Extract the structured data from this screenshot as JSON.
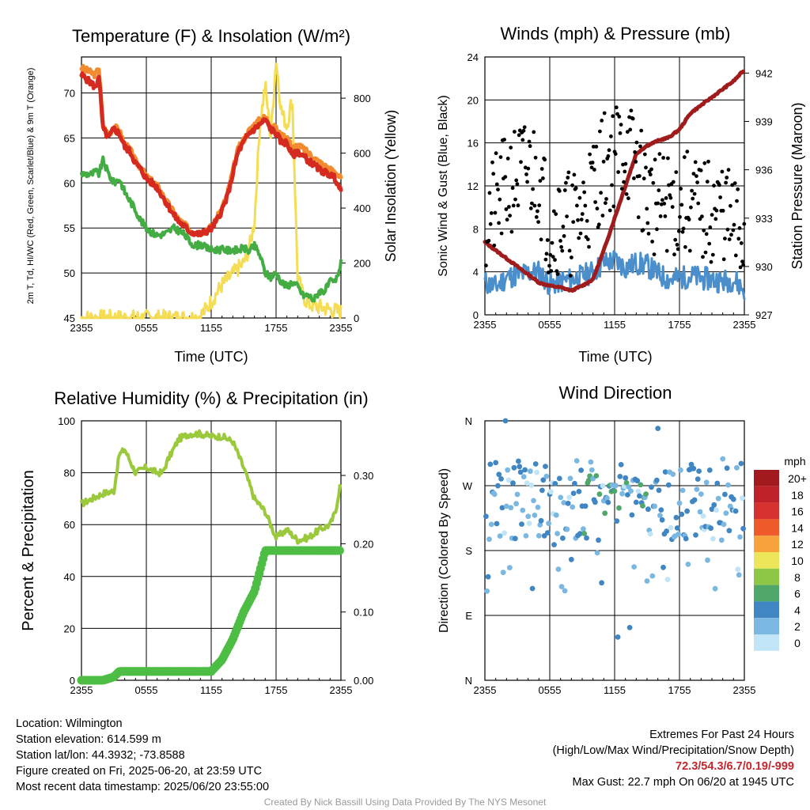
{
  "colors": {
    "temp": "#d42a1f",
    "hiwc": "#e8452a",
    "t9m": "#f28a30",
    "dew": "#43ad44",
    "solar": "#f5dc55",
    "wind": "#4a8fcc",
    "gust": "#000000",
    "pressure": "#a01c1c",
    "rh": "#9ac93c",
    "precip": "#4dbd44",
    "extremes": "#c1272d",
    "credit": "#999999"
  },
  "time_ticks": [
    "2355",
    "0555",
    "1155",
    "1755",
    "2355"
  ],
  "chart_data": [
    {
      "type": "line",
      "title": "Temperature (F) & Insolation (W/m²)",
      "xlabel": "Time (UTC)",
      "ylabel": "2m T, Td, HI/WC (Red, Green, Scarlet/Blue) & 9m T (Orange)",
      "y2label": "Solar Insolation (Yellow)",
      "x_hours": [
        0,
        1,
        1.3,
        1.6,
        2,
        2.5,
        3,
        3.5,
        4,
        4.5,
        5,
        5.5,
        6,
        6.5,
        7,
        7.5,
        8,
        8.5,
        9,
        9.5,
        10,
        10.5,
        11,
        11.5,
        12,
        12.5,
        13,
        13.5,
        14,
        14.5,
        15,
        15.5,
        16,
        16.5,
        17,
        17.5,
        18,
        18.5,
        19,
        19.5,
        20,
        20.5,
        21,
        21.5,
        22,
        22.5,
        23,
        23.5,
        24
      ],
      "ylim": [
        45,
        74
      ],
      "y2lim": [
        0,
        950
      ],
      "yticks": [
        45,
        50,
        55,
        60,
        65,
        70
      ],
      "y2ticks": [
        0,
        200,
        400,
        600,
        800
      ],
      "series": [
        {
          "name": "2m T",
          "values": [
            72,
            71,
            70.5,
            72,
            66,
            65,
            66,
            65.5,
            64,
            63.5,
            62.2,
            61.5,
            60.5,
            60,
            59.5,
            58.5,
            57.5,
            56.5,
            55.7,
            55.2,
            54.6,
            54.4,
            54.3,
            54.6,
            54.9,
            55.8,
            57,
            58.5,
            61,
            63.5,
            64.5,
            65.5,
            66,
            66.5,
            67,
            66,
            65.5,
            64.5,
            64.5,
            63,
            63.5,
            63,
            62.5,
            62,
            61.5,
            61.2,
            60.9,
            60.5,
            59
          ]
        },
        {
          "name": "9m T",
          "values": [
            72.8,
            72.2,
            72,
            72.8,
            66.3,
            65.3,
            66.3,
            65.8,
            64.3,
            63.7,
            62.4,
            61.7,
            60.7,
            60.2,
            59.7,
            58.7,
            57.7,
            56.8,
            55.9,
            55.4,
            54.8,
            54.6,
            54.5,
            54.8,
            55.1,
            56,
            57.2,
            58.8,
            61.3,
            63.8,
            64.8,
            65.8,
            66.5,
            67,
            67.3,
            66.5,
            66,
            65.2,
            65.2,
            63.8,
            64.2,
            63.8,
            63.3,
            62.8,
            62.3,
            61.9,
            61.5,
            61.2,
            60.5
          ]
        },
        {
          "name": "Td",
          "values": [
            61,
            61,
            61.3,
            61,
            62.5,
            61,
            60,
            60.5,
            59,
            58,
            57,
            55.8,
            55,
            54.5,
            54.2,
            54.3,
            54.5,
            55,
            54.7,
            54.3,
            53.5,
            53,
            53.2,
            52.8,
            52.6,
            52.6,
            52.6,
            52.5,
            52.6,
            52.5,
            52.8,
            52.4,
            53,
            52,
            50,
            49.5,
            50,
            49,
            48.5,
            49,
            48.5,
            47.5,
            47.5,
            47,
            48,
            48,
            49,
            49,
            51
          ]
        },
        {
          "name": "Solar Insolation",
          "values": [
            0,
            0,
            0,
            0,
            0,
            0,
            0,
            0,
            0,
            0,
            0,
            0,
            0,
            0,
            0,
            0,
            0,
            0,
            0,
            0,
            0,
            2,
            8,
            30,
            60,
            90,
            120,
            140,
            160,
            180,
            200,
            250,
            350,
            700,
            850,
            650,
            940,
            750,
            700,
            800,
            150,
            80,
            50,
            45,
            40,
            35,
            30,
            25,
            20
          ]
        }
      ]
    },
    {
      "type": "scatter",
      "title": "Winds (mph) & Pressure (mb)",
      "xlabel": "Time (UTC)",
      "ylabel": "Sonic Wind & Gust (Blue, Black)",
      "y2label": "Station Pressure (Maroon)",
      "ylim": [
        0,
        24
      ],
      "y2lim": [
        927,
        943
      ],
      "yticks": [
        0,
        4,
        8,
        12,
        16,
        20,
        24
      ],
      "y2ticks": [
        927,
        930,
        933,
        936,
        939,
        942
      ],
      "x_hours": [
        0,
        1,
        2,
        3,
        4,
        5,
        6,
        7,
        8,
        9,
        10,
        11,
        12,
        13,
        14,
        15,
        16,
        17,
        18,
        19,
        20,
        21,
        22,
        23,
        24
      ],
      "series": [
        {
          "name": "Station Pressure",
          "values": [
            931.5,
            931,
            930.5,
            930,
            929.5,
            929,
            928.8,
            928.7,
            928.5,
            928.8,
            929.2,
            931,
            933,
            935,
            937,
            937.5,
            937.8,
            938,
            938.5,
            939.5,
            940,
            940.5,
            941,
            941.5,
            942.2
          ]
        },
        {
          "name": "Sonic Wind",
          "values": [
            3,
            2.6,
            3.5,
            3.7,
            3.9,
            4,
            2.8,
            3.1,
            3.3,
            3.6,
            4,
            4.8,
            5.1,
            4.4,
            4.8,
            4.6,
            3.8,
            3.3,
            3.4,
            3.6,
            3.4,
            3.3,
            3.1,
            3.3,
            2.3
          ]
        },
        {
          "name": "Gust",
          "values": [
            9,
            10,
            12,
            13,
            13.5,
            13,
            8,
            9,
            8.5,
            9.5,
            12,
            14,
            15,
            15.5,
            14,
            11,
            10,
            10.5,
            10,
            10.5,
            9.5,
            9.5,
            10,
            8,
            7
          ]
        }
      ]
    },
    {
      "type": "line",
      "title": "Relative Humidity (%) & Precipitation (in)",
      "ylabel": "Percent & Precipitation",
      "ylim": [
        0,
        100
      ],
      "y2lim": [
        0,
        0.38
      ],
      "yticks": [
        0,
        20,
        40,
        60,
        80,
        100
      ],
      "y2ticks": [
        "0.00",
        "0.10",
        "0.20",
        "0.30"
      ],
      "x_hours": [
        0,
        1,
        2,
        3,
        3.5,
        4,
        5,
        6,
        7,
        7.5,
        8,
        9,
        10,
        11,
        12,
        13,
        14,
        15,
        16,
        17,
        18,
        19,
        20,
        21,
        22,
        23,
        23.5,
        24
      ],
      "series": [
        {
          "name": "RH",
          "values": [
            68,
            70,
            72,
            73,
            87,
            89,
            80,
            82,
            80,
            80,
            85,
            93,
            95,
            95,
            94,
            94,
            92,
            82,
            70,
            65,
            55,
            58,
            54,
            55,
            58,
            60,
            65,
            77
          ]
        },
        {
          "name": "Precipitation",
          "values": [
            0,
            0,
            0,
            0.005,
            0.013,
            0.013,
            0.013,
            0.013,
            0.013,
            0.013,
            0.013,
            0.013,
            0.013,
            0.013,
            0.013,
            0.03,
            0.06,
            0.1,
            0.13,
            0.19,
            0.19,
            0.19,
            0.19,
            0.19,
            0.19,
            0.19,
            0.19,
            0.19
          ]
        }
      ]
    },
    {
      "type": "scatter",
      "title": "Wind Direction",
      "ylabel": "Direction (Colored By Speed)",
      "ylim": [
        0,
        360
      ],
      "yticks": [
        "N",
        "E",
        "S",
        "W",
        "N"
      ],
      "legend": {
        "title": "mph",
        "labels": [
          "20+",
          "18",
          "16",
          "14",
          "12",
          "10",
          "8",
          "6",
          "4",
          "2",
          "0"
        ],
        "colors": [
          "#a21a1f",
          "#c0222a",
          "#d63230",
          "#ef5a2a",
          "#f7a23d",
          "#ede65a",
          "#8ec645",
          "#4fa86a",
          "#3f86c3",
          "#7ab8e2",
          "#c1e4f7"
        ]
      }
    }
  ],
  "info_left": [
    "Location: Wilmington",
    "Station elevation: 614.599 m",
    "Station lat/lon: 44.3932; -73.8588",
    "Figure created on Fri, 2025-06-20, at 23:59 UTC",
    "Most recent data timestamp: 2025/06/20 23:55:00"
  ],
  "info_right": {
    "line1": "Extremes For Past 24 Hours",
    "line2": "(High/Low/Max Wind/Precipitation/Snow Depth)",
    "extremes": "72.3/54.3/6.7/0.19/-999",
    "gust": "Max Gust: 22.7 mph On 06/20 at 1945 UTC"
  },
  "credit": "Created By Nick Bassill Using Data Provided By The NYS Mesonet"
}
